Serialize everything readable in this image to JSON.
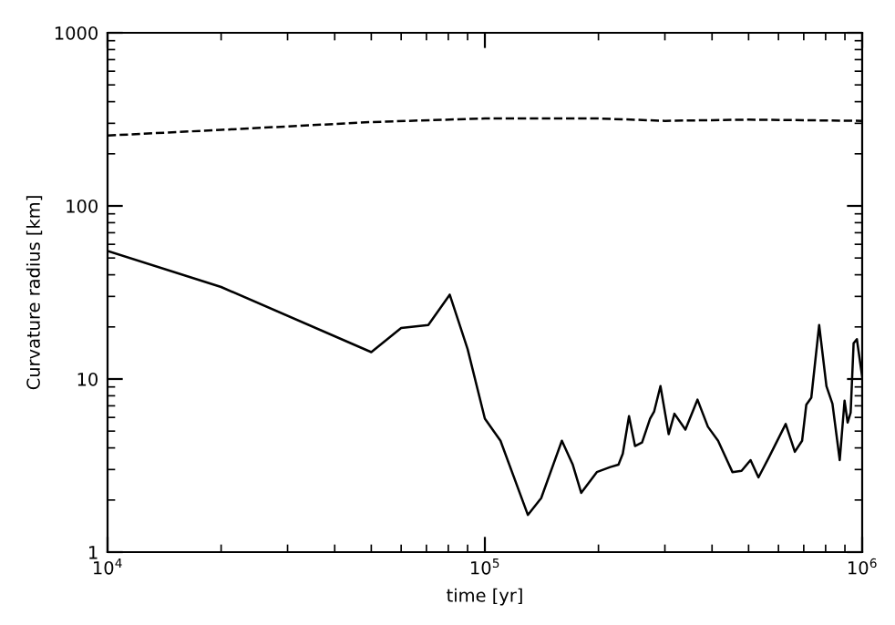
{
  "chart_data": {
    "type": "line",
    "xlabel": "time [yr]",
    "ylabel": "Curvature radius [km]",
    "log": "xy",
    "xlim": [
      10000,
      1000000
    ],
    "ylim": [
      1,
      1000
    ],
    "xticks": [
      {
        "value": 10000,
        "label": "10$^{4}$"
      },
      {
        "value": 100000,
        "label": "10$^{5}$"
      },
      {
        "value": 1000000,
        "label": "10$^{6}$"
      }
    ],
    "yticks": [
      1,
      10,
      100,
      1000
    ],
    "grid": false,
    "marker": "none",
    "series": [
      {
        "color": "#000000",
        "line_style": "solid",
        "x": [
          10000,
          20000,
          50000,
          60000,
          70800,
          80700,
          90000,
          100000,
          110000,
          130000,
          141000,
          160000,
          171000,
          180000,
          198000,
          215000,
          226000,
          232000,
          241000,
          250000,
          261000,
          274000,
          281000,
          292000,
          307000,
          318000,
          340000,
          366000,
          390000,
          415000,
          453000,
          479000,
          506000,
          531000,
          565000,
          627000,
          663000,
          693000,
          711000,
          733000,
          769000,
          804000,
          834000,
          872000,
          898000,
          915000,
          932000,
          949000,
          968000,
          1000000
        ],
        "values": [
          55,
          34,
          14.3,
          19.7,
          20.5,
          30.7,
          14.9,
          5.9,
          4.4,
          1.64,
          2.05,
          4.4,
          3.2,
          2.2,
          2.9,
          3.1,
          3.2,
          3.7,
          6.1,
          4.1,
          4.3,
          5.9,
          6.5,
          9.1,
          4.8,
          6.3,
          5.1,
          7.6,
          5.3,
          4.4,
          2.9,
          2.95,
          3.4,
          2.7,
          3.5,
          5.5,
          3.8,
          4.4,
          7.1,
          7.8,
          20.5,
          9.1,
          7.2,
          3.4,
          7.5,
          5.6,
          6.4,
          16.1,
          17,
          10.3
        ]
      },
      {
        "color": "#000000",
        "line_style": "dashed",
        "x": [
          10000,
          20000,
          50000,
          100000,
          200000,
          300000,
          500000,
          1000000
        ],
        "values": [
          255,
          275,
          305,
          320,
          320,
          310,
          315,
          310
        ]
      }
    ]
  }
}
